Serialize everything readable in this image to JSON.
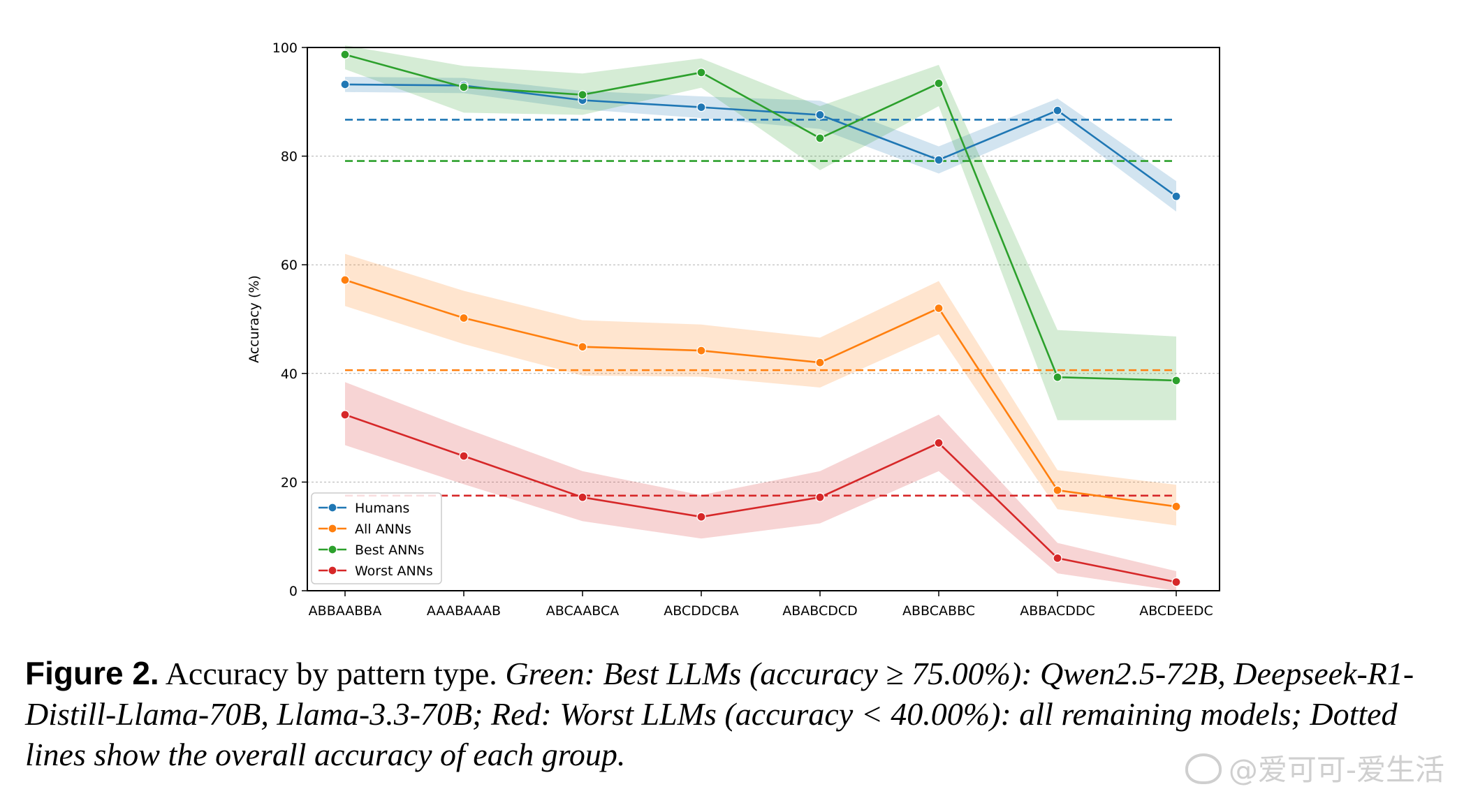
{
  "chart_data": {
    "type": "line",
    "categories": [
      "ABBAABBA",
      "AAABAAAB",
      "ABCAABCA",
      "ABCDDCBA",
      "ABABCDCD",
      "ABBCABBC",
      "ABBACDDC",
      "ABCDEEDC"
    ],
    "ylabel": "Accuracy (%)",
    "xlabel": "",
    "ylim": [
      0,
      100
    ],
    "yticks": [
      0,
      20,
      40,
      60,
      80,
      100
    ],
    "grid": "horizontal dashed",
    "legend_position": "lower-left",
    "series": [
      {
        "name": "Humans",
        "color": "#1f77b4",
        "values": [
          93.2,
          93.0,
          90.3,
          89.0,
          87.6,
          79.3,
          88.4,
          72.6
        ],
        "lower": [
          91.8,
          91.6,
          88.6,
          87.0,
          85.0,
          76.8,
          86.2,
          69.8
        ],
        "upper": [
          94.6,
          94.4,
          92.0,
          91.0,
          90.2,
          81.8,
          90.6,
          75.4
        ],
        "overall": 86.7
      },
      {
        "name": "All ANNs",
        "color": "#ff7f0e",
        "values": [
          57.2,
          50.2,
          44.9,
          44.2,
          42.0,
          52.0,
          18.5,
          15.5
        ],
        "lower": [
          52.4,
          45.4,
          39.6,
          39.4,
          37.4,
          47.2,
          15.0,
          12.0
        ],
        "upper": [
          62.0,
          55.2,
          49.8,
          49.0,
          46.6,
          57.0,
          22.2,
          19.5
        ],
        "overall": 40.6
      },
      {
        "name": "Best ANNs",
        "color": "#2ca02c",
        "values": [
          98.7,
          92.7,
          91.3,
          95.4,
          83.3,
          93.4,
          39.3,
          38.7
        ],
        "lower": [
          96.0,
          88.0,
          87.6,
          92.6,
          77.4,
          89.2,
          31.4,
          31.4
        ],
        "upper": [
          100.4,
          96.6,
          95.2,
          98.0,
          89.2,
          96.8,
          48.0,
          46.8
        ],
        "overall": 79.1
      },
      {
        "name": "Worst ANNs",
        "color": "#d62728",
        "values": [
          32.4,
          24.8,
          17.2,
          13.6,
          17.2,
          27.2,
          6.0,
          1.6
        ],
        "lower": [
          26.8,
          19.6,
          12.8,
          9.6,
          12.4,
          22.0,
          3.2,
          0.0
        ],
        "upper": [
          38.4,
          30.0,
          22.0,
          17.6,
          22.0,
          32.4,
          8.8,
          3.6
        ],
        "overall": 17.5
      }
    ]
  },
  "caption": {
    "figure_label": "Figure 2.",
    "title": "Accuracy by pattern type.",
    "description": "Green: Best LLMs (accuracy ≥ 75.00%): Qwen2.5-72B, Deepseek-R1-Distill-Llama-70B, Llama-3.3-70B; Red: Worst LLMs (accuracy < 40.00%): all remaining models; Dotted lines show the overall accuracy of each group."
  },
  "watermark": {
    "text": "@爱可可-爱生活"
  }
}
